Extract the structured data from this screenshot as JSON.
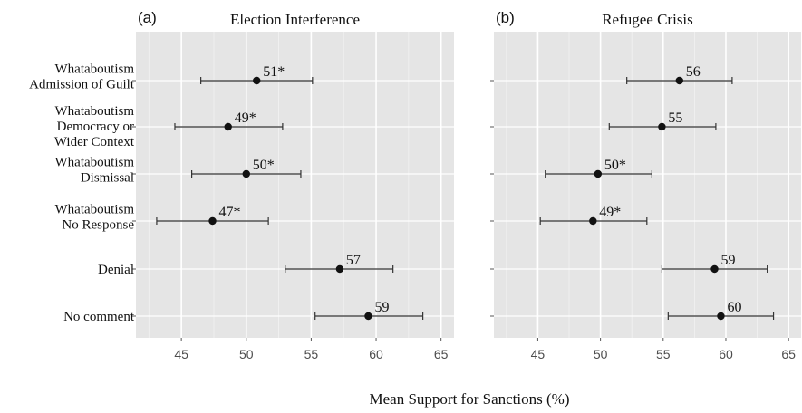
{
  "chart_data": {
    "type": "scatter",
    "xlabel": "Mean Support for Sanctions (%)",
    "xlim": [
      41.5,
      66
    ],
    "xticks": [
      45,
      50,
      55,
      60,
      65
    ],
    "xtick_labels": [
      "45",
      "50",
      "55",
      "60",
      "65"
    ],
    "grid": true,
    "error_bars": true,
    "categories": [
      [
        "Whataboutism",
        "Admission of Guilt"
      ],
      [
        "Whataboutism",
        "Democracy or",
        "Wider Context"
      ],
      [
        "Whataboutism",
        "Dismissal"
      ],
      [
        "Whataboutism",
        "No Response"
      ],
      [
        "Denial"
      ],
      [
        "No comment"
      ]
    ],
    "panels": [
      {
        "panel_label": "(a)",
        "title": "Election Interference",
        "points": [
          {
            "value": 50.8,
            "low": 46.5,
            "high": 55.1,
            "label": "51*"
          },
          {
            "value": 48.6,
            "low": 44.5,
            "high": 52.8,
            "label": "49*"
          },
          {
            "value": 50.0,
            "low": 45.8,
            "high": 54.2,
            "label": "50*"
          },
          {
            "value": 47.4,
            "low": 43.1,
            "high": 51.7,
            "label": "47*"
          },
          {
            "value": 57.2,
            "low": 53.0,
            "high": 61.3,
            "label": "57"
          },
          {
            "value": 59.4,
            "low": 55.3,
            "high": 63.6,
            "label": "59"
          }
        ]
      },
      {
        "panel_label": "(b)",
        "title": "Refugee Crisis",
        "points": [
          {
            "value": 56.3,
            "low": 52.1,
            "high": 60.5,
            "label": "56"
          },
          {
            "value": 54.9,
            "low": 50.7,
            "high": 59.2,
            "label": "55"
          },
          {
            "value": 49.8,
            "low": 45.6,
            "high": 54.1,
            "label": "50*"
          },
          {
            "value": 49.4,
            "low": 45.2,
            "high": 53.7,
            "label": "49*"
          },
          {
            "value": 59.1,
            "low": 54.9,
            "high": 63.3,
            "label": "59"
          },
          {
            "value": 59.6,
            "low": 55.4,
            "high": 63.8,
            "label": "60"
          }
        ]
      }
    ]
  }
}
